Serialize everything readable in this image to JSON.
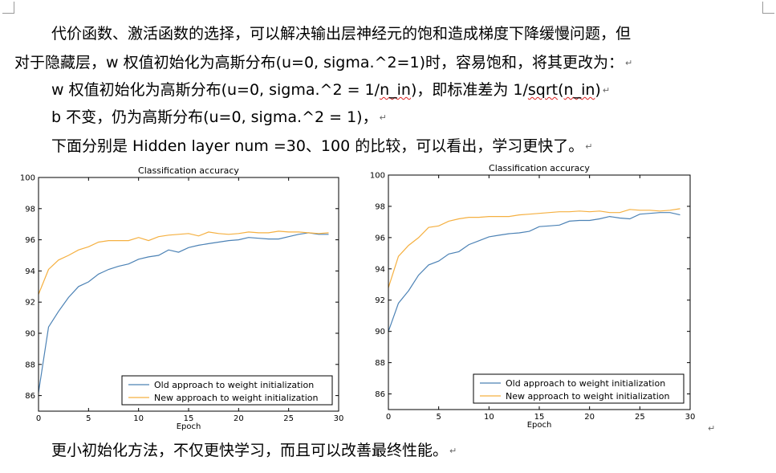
{
  "document": {
    "para1_line1": "代价函数、激活函数的选择，可以解决输出层神经元的饱和造成梯度下降缓慢问题，但",
    "para1_line2": "对于隐藏层，w 权值初始化为高斯分布(u=0,  sigma.^2=1)时，容易饱和，将其更改为：",
    "para2_prefix": "w 权值初始化为高斯分布(u=0,  sigma.^2 = 1/",
    "para2_n_in_1": "n_in",
    "para2_middle": ")，即标准差为   1/",
    "para2_sqrt": "sqrt",
    "para2_open": "(",
    "para2_n_in_2": "n_in",
    "para2_close": ")",
    "para3": "b 不变，仍为高斯分布(u=0,  sigma.^2 = 1)，",
    "para4": "下面分别是 Hidden  layer  num =30、100 的比较，可以看出，学习更快了。",
    "conclusion": "更小初始化方法，不仅更快学习，而且可以改善最终性能。",
    "return_mark": "↵"
  },
  "chart_data": [
    {
      "type": "line",
      "title": "Classification accuracy",
      "xlabel": "Epoch",
      "ylabel": "",
      "xlim": [
        0,
        30
      ],
      "ylim": [
        85,
        100
      ],
      "xticks": [
        0,
        5,
        10,
        15,
        20,
        25,
        30
      ],
      "yticks": [
        86,
        88,
        90,
        92,
        94,
        96,
        98,
        100
      ],
      "grid": false,
      "legend": "bottom-right",
      "x": [
        0,
        1,
        2,
        3,
        4,
        5,
        6,
        7,
        8,
        9,
        10,
        11,
        12,
        13,
        14,
        15,
        16,
        17,
        18,
        19,
        20,
        21,
        22,
        23,
        24,
        25,
        26,
        27,
        28,
        29
      ],
      "series": [
        {
          "name": "Old approach to weight initialization",
          "color": "#4c82b5",
          "values": [
            86.2,
            90.4,
            91.4,
            92.3,
            93.0,
            93.3,
            93.8,
            94.1,
            94.3,
            94.45,
            94.75,
            94.9,
            95.0,
            95.35,
            95.2,
            95.5,
            95.65,
            95.75,
            95.85,
            95.95,
            96.0,
            96.15,
            96.1,
            96.05,
            96.05,
            96.2,
            96.35,
            96.45,
            96.35,
            96.35
          ]
        },
        {
          "name": "New approach to weight initialization",
          "color": "#f5b041",
          "values": [
            92.5,
            94.1,
            94.7,
            95.0,
            95.35,
            95.55,
            95.85,
            95.95,
            95.95,
            95.95,
            96.15,
            95.95,
            96.2,
            96.3,
            96.35,
            96.4,
            96.25,
            96.5,
            96.4,
            96.35,
            96.4,
            96.5,
            96.45,
            96.45,
            96.55,
            96.5,
            96.5,
            96.45,
            96.4,
            96.45
          ]
        }
      ]
    },
    {
      "type": "line",
      "title": "Classification accuracy",
      "xlabel": "Epoch",
      "ylabel": "",
      "xlim": [
        0,
        30
      ],
      "ylim": [
        85,
        100
      ],
      "xticks": [
        0,
        5,
        10,
        15,
        20,
        25,
        30
      ],
      "yticks": [
        86,
        88,
        90,
        92,
        94,
        96,
        98,
        100
      ],
      "grid": false,
      "legend": "bottom-right",
      "x": [
        0,
        1,
        2,
        3,
        4,
        5,
        6,
        7,
        8,
        9,
        10,
        11,
        12,
        13,
        14,
        15,
        16,
        17,
        18,
        19,
        20,
        21,
        22,
        23,
        24,
        25,
        26,
        27,
        28,
        29
      ],
      "series": [
        {
          "name": "Old approach to weight initialization",
          "color": "#4c82b5",
          "values": [
            90.0,
            91.8,
            92.6,
            93.6,
            94.25,
            94.5,
            94.95,
            95.1,
            95.55,
            95.8,
            96.05,
            96.15,
            96.25,
            96.3,
            96.4,
            96.7,
            96.75,
            96.8,
            97.05,
            97.1,
            97.1,
            97.2,
            97.35,
            97.25,
            97.2,
            97.5,
            97.55,
            97.6,
            97.6,
            97.45
          ]
        },
        {
          "name": "New approach to weight initialization",
          "color": "#f5b041",
          "values": [
            92.8,
            94.8,
            95.5,
            96.0,
            96.65,
            96.75,
            97.05,
            97.2,
            97.3,
            97.3,
            97.35,
            97.35,
            97.35,
            97.45,
            97.5,
            97.55,
            97.6,
            97.65,
            97.65,
            97.7,
            97.65,
            97.7,
            97.6,
            97.6,
            97.8,
            97.75,
            97.75,
            97.7,
            97.75,
            97.85
          ]
        }
      ]
    }
  ]
}
